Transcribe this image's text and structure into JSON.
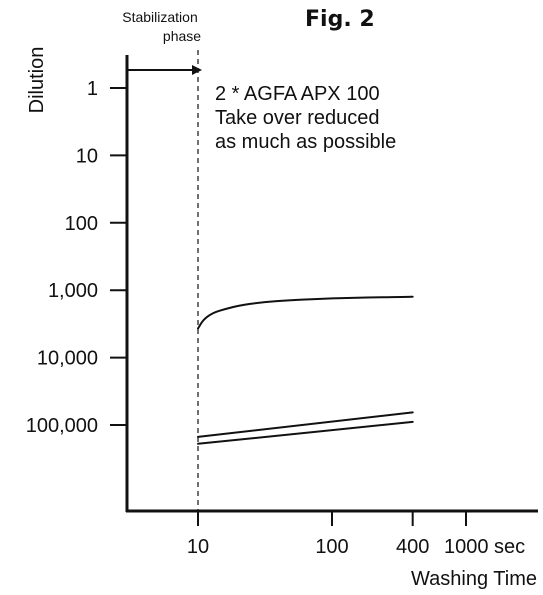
{
  "chart_data": {
    "type": "line",
    "title": "Fig. 2",
    "xlabel": "Washing Time",
    "ylabel": "Dilution",
    "x_scale": "log",
    "y_scale": "log",
    "y_inverted": true,
    "xlim": [
      3,
      2000
    ],
    "ylim": [
      0.3,
      10000000
    ],
    "x_ticks": [
      10,
      100,
      400,
      1000
    ],
    "x_tick_labels": [
      "10",
      "100",
      "400",
      "1000 sec"
    ],
    "y_ticks": [
      1,
      10,
      100,
      1000,
      10000,
      100000
    ],
    "y_tick_labels": [
      "1",
      "10",
      "100",
      "1,000",
      "10,000",
      "100,000"
    ],
    "stabilization": {
      "label_line1": "Stabilization",
      "label_line2": "phase",
      "x_end": 10
    },
    "annotation": [
      "2 * AGFA APX 100",
      "Take over reduced",
      "as much as possible"
    ],
    "series": [
      {
        "x": [
          10,
          11,
          13,
          16,
          20,
          30,
          50,
          100,
          200,
          400
        ],
        "y": [
          3700,
          2700,
          2150,
          1900,
          1700,
          1500,
          1400,
          1320,
          1280,
          1250
        ]
      },
      {
        "x": [
          10,
          400
        ],
        "y": [
          150000,
          65000
        ]
      },
      {
        "x": [
          10,
          400
        ],
        "y": [
          190000,
          90000
        ]
      }
    ],
    "grid": false
  }
}
